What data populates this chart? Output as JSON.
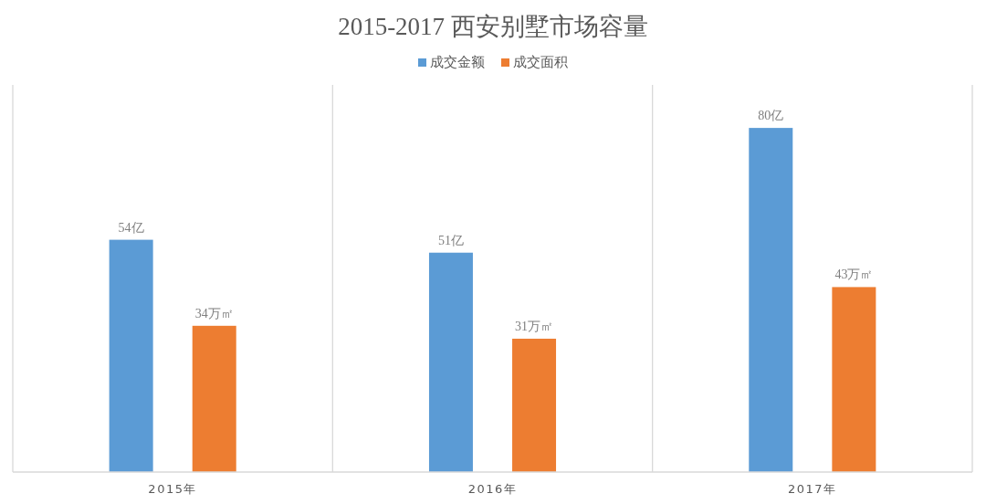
{
  "chart_data": {
    "type": "bar",
    "title": "2015-2017 西安别墅市场容量",
    "categories": [
      "2015年",
      "2016年",
      "2017年"
    ],
    "series": [
      {
        "name": "成交金额",
        "color": "#5b9bd5",
        "values": [
          54,
          51,
          80
        ],
        "value_labels": [
          "54亿",
          "51亿",
          "80亿"
        ]
      },
      {
        "name": "成交面积",
        "color": "#ed7d31",
        "values": [
          34,
          31,
          43
        ],
        "value_labels": [
          "34万㎡",
          "31万㎡",
          "43万㎡"
        ]
      }
    ],
    "ylim": [
      0,
      90
    ],
    "grid": "x",
    "legend": "top"
  }
}
